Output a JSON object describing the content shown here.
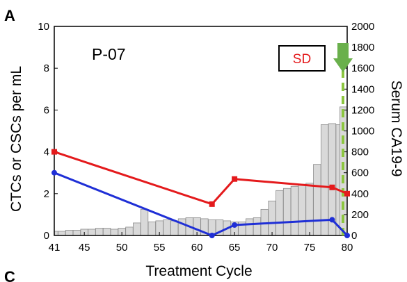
{
  "panel_labels": [
    "A",
    "C"
  ],
  "chart_data": {
    "type": "line",
    "title": "P-07",
    "xlabel": "Treatment Cycle",
    "ylabel_left": "CTCs or CSCs per mL",
    "ylabel_right": "Serum CA19-9",
    "xlim": [
      41,
      80
    ],
    "ylim_left": [
      0,
      10
    ],
    "ylim_right": [
      0,
      2000
    ],
    "x_ticks": [
      41,
      45,
      50,
      55,
      60,
      65,
      70,
      75,
      80
    ],
    "y_left_ticks": [
      0,
      2,
      4,
      6,
      8,
      10
    ],
    "y_right_ticks": [
      0,
      200,
      400,
      600,
      800,
      1000,
      1200,
      1400,
      1600,
      1800,
      2000
    ],
    "annotation": "SD",
    "series": [
      {
        "axis": "left",
        "color": "#e41a1c",
        "x": [
          41,
          62,
          65,
          78,
          80
        ],
        "values": [
          4.0,
          1.5,
          2.7,
          2.3,
          2.0
        ]
      },
      {
        "axis": "left",
        "color": "#1f2fd6",
        "x": [
          41,
          62,
          65,
          78,
          80
        ],
        "values": [
          3.0,
          0.0,
          0.5,
          0.75,
          0.0
        ]
      }
    ],
    "bars": {
      "axis": "right",
      "x": [
        41,
        42,
        43,
        44,
        45,
        46,
        47,
        48,
        49,
        50,
        51,
        52,
        53,
        54,
        55,
        56,
        57,
        58,
        59,
        60,
        61,
        62,
        63,
        64,
        65,
        66,
        67,
        68,
        69,
        70,
        71,
        72,
        73,
        74,
        75,
        76,
        77,
        78,
        79,
        80
      ],
      "values": [
        40,
        40,
        50,
        50,
        60,
        60,
        70,
        70,
        60,
        70,
        80,
        120,
        250,
        130,
        140,
        150,
        140,
        160,
        170,
        170,
        160,
        150,
        150,
        140,
        130,
        130,
        160,
        170,
        250,
        330,
        430,
        450,
        470,
        490,
        500,
        680,
        1060,
        1070,
        1060,
        1230
      ]
    },
    "arrow_x": 80
  },
  "colors": {
    "red": "#e41a1c",
    "blue": "#1f2fd6",
    "bar_fill": "#d9d9d9",
    "bar_stroke": "#8c8c8c",
    "arrow": "#6ab04c",
    "dashed": "#8cc63f"
  }
}
